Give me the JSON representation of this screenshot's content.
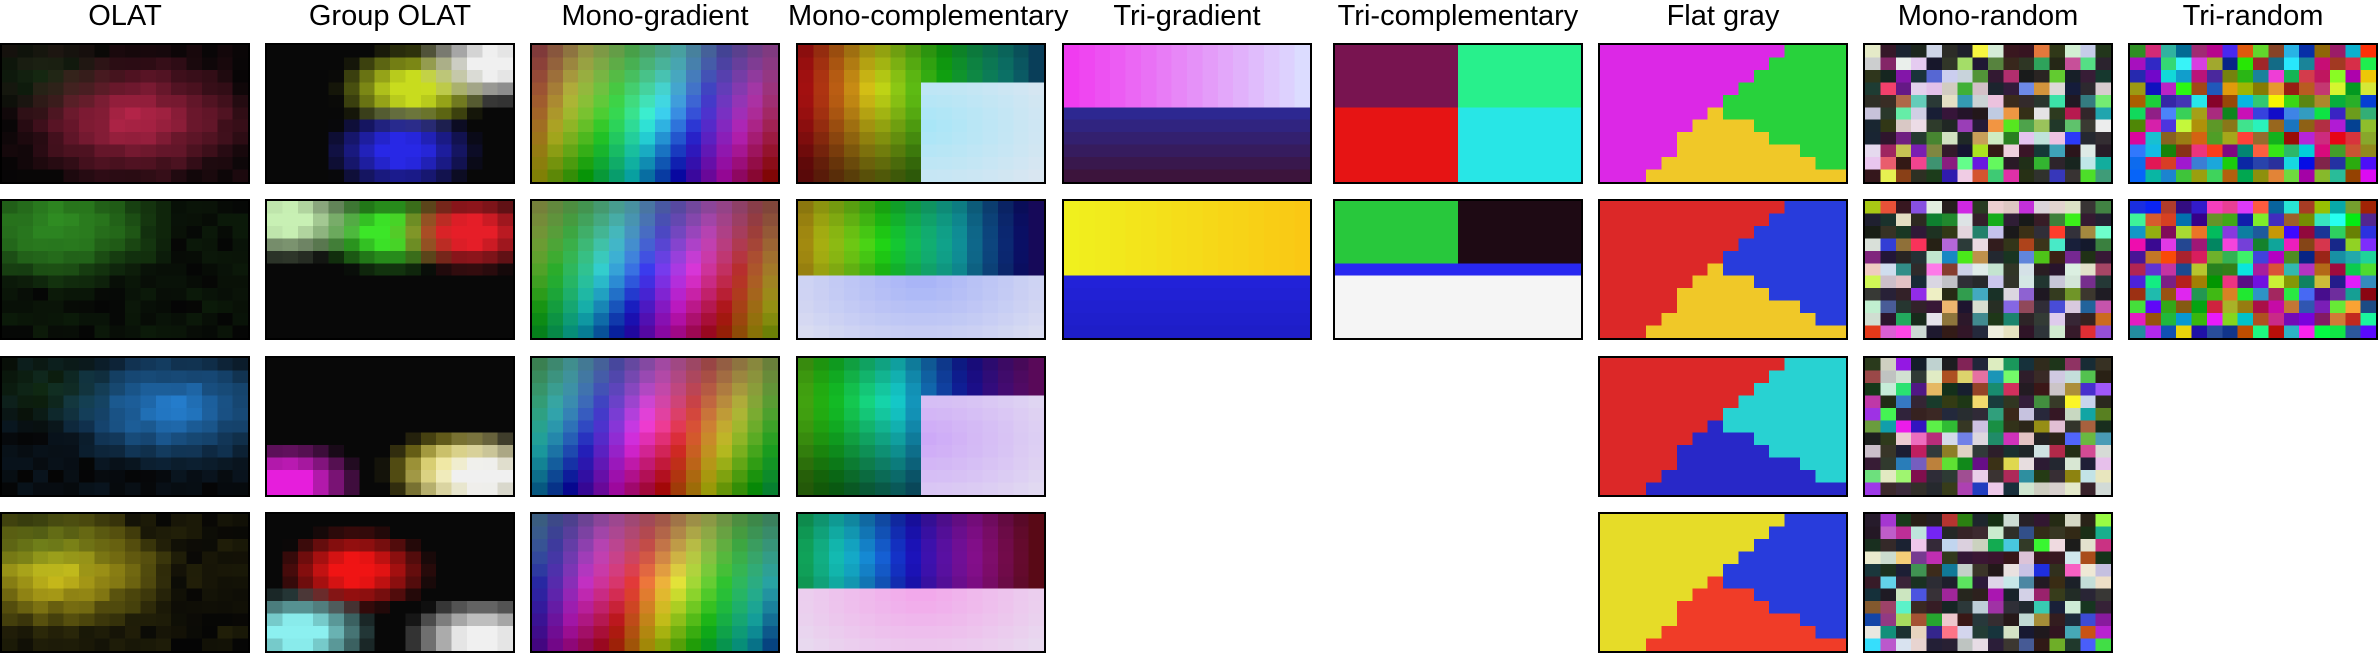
{
  "columns": [
    {
      "title": "OLAT",
      "tiles": [
        "olat-1",
        "olat-2",
        "olat-3",
        "olat-4"
      ]
    },
    {
      "title": "Group OLAT",
      "tiles": [
        "group-olat-1",
        "group-olat-2",
        "group-olat-3",
        "group-olat-4"
      ]
    },
    {
      "title": "Mono-gradient",
      "tiles": [
        "mono-gradient-1",
        "mono-gradient-2",
        "mono-gradient-3",
        "mono-gradient-4"
      ]
    },
    {
      "title": "Mono-complementary",
      "tiles": [
        "mono-complementary-1",
        "mono-complementary-2",
        "mono-complementary-3",
        "mono-complementary-4"
      ]
    },
    {
      "title": "Tri-gradient",
      "tiles": [
        "tri-gradient-1",
        "tri-gradient-2"
      ]
    },
    {
      "title": "Tri-complementary",
      "tiles": [
        "tri-complementary-1",
        "tri-complementary-2"
      ]
    },
    {
      "title": "Flat gray",
      "tiles": [
        "flat-gray-1",
        "flat-gray-2",
        "flat-gray-3",
        "flat-gray-4"
      ]
    },
    {
      "title": "Mono-random",
      "tiles": [
        "mono-random-1",
        "mono-random-2",
        "mono-random-3",
        "mono-random-4"
      ]
    },
    {
      "title": "Tri-random",
      "tiles": [
        "tri-random-1",
        "tri-random-2"
      ]
    }
  ]
}
